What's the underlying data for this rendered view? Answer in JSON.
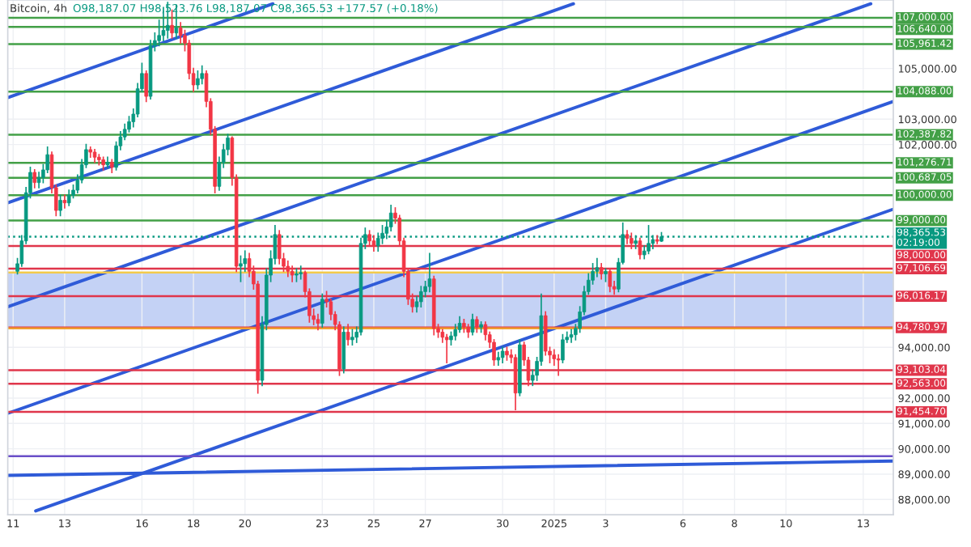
{
  "chart_data": {
    "type": "candlestick",
    "title": "Bitcoin, 4h",
    "annotations": [
      "O98,187.07 H98,523.76 L98,187.07 C98,365.53 +177.57 (+0.18%)"
    ],
    "x": [
      "2024-12-11T04:00",
      "2024-12-11T08:00",
      "2024-12-11T12:00",
      "2024-12-11T16:00",
      "2024-12-11T20:00",
      "2024-12-12T00:00",
      "2024-12-12T04:00",
      "2024-12-12T08:00",
      "2024-12-12T12:00",
      "2024-12-12T16:00",
      "2024-12-12T20:00",
      "2024-12-13T00:00",
      "2024-12-13T04:00",
      "2024-12-13T08:00",
      "2024-12-13T12:00",
      "2024-12-13T16:00",
      "2024-12-13T20:00",
      "2024-12-14T00:00",
      "2024-12-14T04:00",
      "2024-12-14T08:00",
      "2024-12-14T12:00",
      "2024-12-14T16:00",
      "2024-12-14T20:00",
      "2024-12-15T00:00",
      "2024-12-15T04:00",
      "2024-12-15T08:00",
      "2024-12-15T12:00",
      "2024-12-15T16:00",
      "2024-12-15T20:00",
      "2024-12-16T00:00",
      "2024-12-16T04:00",
      "2024-12-16T08:00",
      "2024-12-16T12:00",
      "2024-12-16T16:00",
      "2024-12-16T20:00",
      "2024-12-17T00:00",
      "2024-12-17T04:00",
      "2024-12-17T08:00",
      "2024-12-17T12:00",
      "2024-12-17T16:00",
      "2024-12-17T20:00",
      "2024-12-18T00:00",
      "2024-12-18T04:00",
      "2024-12-18T08:00",
      "2024-12-18T12:00",
      "2024-12-18T16:00",
      "2024-12-18T20:00",
      "2024-12-19T00:00",
      "2024-12-19T04:00",
      "2024-12-19T08:00",
      "2024-12-19T12:00",
      "2024-12-19T16:00",
      "2024-12-19T20:00",
      "2024-12-20T00:00",
      "2024-12-20T04:00",
      "2024-12-20T08:00",
      "2024-12-20T12:00",
      "2024-12-20T16:00",
      "2024-12-20T20:00",
      "2024-12-21T00:00",
      "2024-12-21T04:00",
      "2024-12-21T08:00",
      "2024-12-21T12:00",
      "2024-12-21T16:00",
      "2024-12-21T20:00",
      "2024-12-22T00:00",
      "2024-12-22T04:00",
      "2024-12-22T08:00",
      "2024-12-22T12:00",
      "2024-12-22T16:00",
      "2024-12-22T20:00",
      "2024-12-23T00:00",
      "2024-12-23T04:00",
      "2024-12-23T08:00",
      "2024-12-23T12:00",
      "2024-12-23T16:00",
      "2024-12-23T20:00",
      "2024-12-24T00:00",
      "2024-12-24T04:00",
      "2024-12-24T08:00",
      "2024-12-24T12:00",
      "2024-12-24T16:00",
      "2024-12-24T20:00",
      "2024-12-25T00:00",
      "2024-12-25T04:00",
      "2024-12-25T08:00",
      "2024-12-25T12:00",
      "2024-12-25T16:00",
      "2024-12-25T20:00",
      "2024-12-26T00:00",
      "2024-12-26T04:00",
      "2024-12-26T08:00",
      "2024-12-26T12:00",
      "2024-12-26T16:00",
      "2024-12-26T20:00",
      "2024-12-27T00:00",
      "2024-12-27T04:00",
      "2024-12-27T08:00",
      "2024-12-27T12:00",
      "2024-12-27T16:00",
      "2024-12-27T20:00",
      "2024-12-28T00:00",
      "2024-12-28T04:00",
      "2024-12-28T08:00",
      "2024-12-28T12:00",
      "2024-12-28T16:00",
      "2024-12-28T20:00",
      "2024-12-29T00:00",
      "2024-12-29T04:00",
      "2024-12-29T08:00",
      "2024-12-29T12:00",
      "2024-12-29T16:00",
      "2024-12-29T20:00",
      "2024-12-30T00:00",
      "2024-12-30T04:00",
      "2024-12-30T08:00",
      "2024-12-30T12:00",
      "2024-12-30T16:00",
      "2024-12-30T20:00",
      "2024-12-31T00:00",
      "2024-12-31T04:00",
      "2024-12-31T08:00",
      "2024-12-31T12:00",
      "2024-12-31T16:00",
      "2024-12-31T20:00",
      "2025-01-01T00:00",
      "2025-01-01T04:00",
      "2025-01-01T08:00",
      "2025-01-01T12:00",
      "2025-01-01T16:00",
      "2025-01-01T20:00",
      "2025-01-02T00:00",
      "2025-01-02T04:00",
      "2025-01-02T08:00",
      "2025-01-02T12:00",
      "2025-01-02T16:00",
      "2025-01-02T20:00",
      "2025-01-03T00:00",
      "2025-01-03T04:00",
      "2025-01-03T08:00",
      "2025-01-03T12:00",
      "2025-01-03T16:00",
      "2025-01-03T20:00",
      "2025-01-04T00:00",
      "2025-01-04T04:00",
      "2025-01-04T08:00",
      "2025-01-04T12:00",
      "2025-01-04T16:00",
      "2025-01-04T20:00",
      "2025-01-05T00:00",
      "2025-01-05T04:00"
    ],
    "ohlc": [
      [
        97000,
        97500,
        96900,
        97300
      ],
      [
        97300,
        98400,
        97200,
        98200
      ],
      [
        98200,
        100300,
        98100,
        100100
      ],
      [
        100100,
        101100,
        99900,
        100900
      ],
      [
        100900,
        101000,
        100300,
        100500
      ],
      [
        100500,
        100900,
        100300,
        100700
      ],
      [
        100700,
        101200,
        100500,
        101000
      ],
      [
        101000,
        101900,
        100900,
        101600
      ],
      [
        101600,
        101700,
        100100,
        100300
      ],
      [
        100300,
        100400,
        99200,
        99400
      ],
      [
        99400,
        100000,
        99200,
        99800
      ],
      [
        99800,
        100000,
        99500,
        99700
      ],
      [
        99700,
        100200,
        99600,
        100000
      ],
      [
        100000,
        100400,
        99900,
        100200
      ],
      [
        100200,
        100800,
        100100,
        100600
      ],
      [
        100600,
        101400,
        100500,
        101200
      ],
      [
        101200,
        102000,
        101100,
        101800
      ],
      [
        101800,
        101900,
        101500,
        101700
      ],
      [
        101700,
        101800,
        101300,
        101500
      ],
      [
        101500,
        101600,
        101200,
        101400
      ],
      [
        101400,
        101500,
        101000,
        101200
      ],
      [
        101200,
        101500,
        101100,
        101300
      ],
      [
        101300,
        101400,
        100900,
        101100
      ],
      [
        101100,
        102100,
        101000,
        101950
      ],
      [
        101950,
        102500,
        101800,
        102300
      ],
      [
        102300,
        102800,
        102200,
        102600
      ],
      [
        102600,
        103100,
        102500,
        102900
      ],
      [
        102900,
        103400,
        102700,
        103200
      ],
      [
        103200,
        104400,
        103100,
        104200
      ],
      [
        104200,
        105200,
        104100,
        104800
      ],
      [
        104800,
        104900,
        103700,
        103900
      ],
      [
        103900,
        106100,
        103800,
        105900
      ],
      [
        105900,
        106400,
        105700,
        106100
      ],
      [
        106100,
        106900,
        105900,
        106300
      ],
      [
        106300,
        107400,
        106100,
        106500
      ],
      [
        106500,
        107600,
        106200,
        106700
      ],
      [
        106700,
        107300,
        106200,
        106400
      ],
      [
        106400,
        107500,
        106200,
        106600
      ],
      [
        106600,
        106800,
        106000,
        106300
      ],
      [
        106300,
        106500,
        105700,
        106000
      ],
      [
        106000,
        106100,
        104600,
        104800
      ],
      [
        104800,
        105000,
        104100,
        104350
      ],
      [
        104350,
        104900,
        104200,
        104600
      ],
      [
        104600,
        105100,
        104400,
        104800
      ],
      [
        104800,
        104900,
        103500,
        103700
      ],
      [
        103700,
        103800,
        102400,
        102600
      ],
      [
        102600,
        102700,
        100100,
        100350
      ],
      [
        100350,
        101500,
        100200,
        101300
      ],
      [
        101300,
        102000,
        101100,
        101800
      ],
      [
        101800,
        102400,
        101600,
        102260
      ],
      [
        102260,
        102300,
        100400,
        100700
      ],
      [
        100700,
        100800,
        97000,
        97200
      ],
      [
        97200,
        97600,
        96600,
        97300
      ],
      [
        97300,
        97800,
        97000,
        97500
      ],
      [
        97500,
        97700,
        96800,
        97000
      ],
      [
        97000,
        97200,
        96300,
        96500
      ],
      [
        96500,
        96600,
        92200,
        92700
      ],
      [
        92700,
        95200,
        92500,
        94900
      ],
      [
        94900,
        97100,
        94700,
        96850
      ],
      [
        96850,
        97800,
        96600,
        97500
      ],
      [
        97500,
        98800,
        97300,
        98450
      ],
      [
        98450,
        98600,
        97300,
        97500
      ],
      [
        97500,
        97700,
        97000,
        97200
      ],
      [
        97200,
        97400,
        96800,
        97000
      ],
      [
        97000,
        97200,
        96600,
        96850
      ],
      [
        96850,
        97100,
        96600,
        96900
      ],
      [
        96900,
        97200,
        96700,
        96950
      ],
      [
        96950,
        97000,
        96000,
        96200
      ],
      [
        96200,
        96300,
        95000,
        95250
      ],
      [
        95250,
        95500,
        94900,
        95100
      ],
      [
        95100,
        95300,
        94700,
        94950
      ],
      [
        94950,
        96100,
        94800,
        95900
      ],
      [
        95900,
        96200,
        95600,
        95800
      ],
      [
        95800,
        95900,
        95100,
        95300
      ],
      [
        95300,
        95400,
        94700,
        94900
      ],
      [
        94900,
        95000,
        92900,
        93150
      ],
      [
        93150,
        94800,
        93000,
        94600
      ],
      [
        94600,
        94900,
        94100,
        94300
      ],
      [
        94300,
        94700,
        94100,
        94400
      ],
      [
        94400,
        94800,
        94200,
        94600
      ],
      [
        94600,
        98300,
        94500,
        98100
      ],
      [
        98100,
        98700,
        97900,
        98450
      ],
      [
        98450,
        98600,
        98000,
        98200
      ],
      [
        98200,
        98400,
        97800,
        98000
      ],
      [
        98000,
        98500,
        97800,
        98300
      ],
      [
        98300,
        98800,
        98100,
        98500
      ],
      [
        98500,
        99000,
        98300,
        98750
      ],
      [
        98750,
        99600,
        98600,
        99300
      ],
      [
        99300,
        99500,
        98900,
        99100
      ],
      [
        99100,
        99200,
        98000,
        98200
      ],
      [
        98200,
        98300,
        96800,
        97000
      ],
      [
        97000,
        97100,
        95700,
        95900
      ],
      [
        95900,
        96100,
        95400,
        95600
      ],
      [
        95600,
        96000,
        95400,
        95800
      ],
      [
        95800,
        96400,
        95600,
        96200
      ],
      [
        96200,
        96600,
        96000,
        96400
      ],
      [
        96400,
        97700,
        96200,
        96700
      ],
      [
        96700,
        96800,
        94500,
        94750
      ],
      [
        94750,
        94900,
        94400,
        94600
      ],
      [
        94600,
        94700,
        94200,
        94400
      ],
      [
        94400,
        94500,
        93400,
        94300
      ],
      [
        94300,
        94600,
        94100,
        94450
      ],
      [
        94450,
        94900,
        94300,
        94700
      ],
      [
        94700,
        95200,
        94600,
        94950
      ],
      [
        94950,
        95100,
        94600,
        94800
      ],
      [
        94800,
        94900,
        94400,
        94600
      ],
      [
        94600,
        95300,
        94500,
        95100
      ],
      [
        95100,
        95200,
        94600,
        94800
      ],
      [
        94800,
        95000,
        94600,
        94900
      ],
      [
        94900,
        95000,
        94300,
        94500
      ],
      [
        94500,
        94600,
        94000,
        94200
      ],
      [
        94200,
        94300,
        93300,
        93500
      ],
      [
        93500,
        93800,
        93300,
        93600
      ],
      [
        93600,
        94000,
        93400,
        93850
      ],
      [
        93850,
        94000,
        93500,
        93700
      ],
      [
        93700,
        93900,
        93400,
        93600
      ],
      [
        93600,
        93700,
        91550,
        92200
      ],
      [
        92200,
        94300,
        92100,
        94100
      ],
      [
        94100,
        94200,
        93300,
        93500
      ],
      [
        93500,
        93600,
        92500,
        92700
      ],
      [
        92700,
        93100,
        92500,
        92900
      ],
      [
        92900,
        93600,
        92700,
        93450
      ],
      [
        93450,
        96100,
        93300,
        95250
      ],
      [
        95250,
        95400,
        93700,
        93850
      ],
      [
        93850,
        94000,
        93400,
        93700
      ],
      [
        93700,
        93900,
        93300,
        93550
      ],
      [
        93550,
        93700,
        92900,
        93500
      ],
      [
        93500,
        94500,
        93400,
        94300
      ],
      [
        94300,
        94600,
        94200,
        94400
      ],
      [
        94400,
        94700,
        94200,
        94500
      ],
      [
        94500,
        94900,
        94300,
        94750
      ],
      [
        94750,
        95600,
        94600,
        95400
      ],
      [
        95400,
        96400,
        95300,
        96200
      ],
      [
        96200,
        96900,
        96100,
        96650
      ],
      [
        96650,
        97300,
        96500,
        97000
      ],
      [
        97000,
        97500,
        96800,
        97150
      ],
      [
        97150,
        97300,
        96700,
        96900
      ],
      [
        96900,
        97100,
        96600,
        97000
      ],
      [
        97000,
        97100,
        96200,
        96400
      ],
      [
        96400,
        96600,
        96100,
        96300
      ],
      [
        96300,
        97500,
        96200,
        97350
      ],
      [
        97350,
        98900,
        97300,
        98450
      ],
      [
        98450,
        98600,
        98100,
        98300
      ],
      [
        98300,
        98500,
        97900,
        98100
      ],
      [
        98100,
        98400,
        97900,
        98200
      ],
      [
        98200,
        98300,
        97500,
        97650
      ],
      [
        97650,
        98000,
        97500,
        97800
      ],
      [
        97800,
        98800,
        97700,
        98100
      ],
      [
        98100,
        98400,
        97900,
        98250
      ],
      [
        98250,
        98400,
        98100,
        98187.07
      ],
      [
        98187.07,
        98523.76,
        98187.07,
        98365.53
      ]
    ],
    "series": [
      {
        "type": "line",
        "color": "#2f5bd8",
        "x": [
          "2024-12-10T19:00",
          "2024-12-21T02:00"
        ],
        "values": [
          103850,
          107550
        ]
      },
      {
        "type": "line",
        "color": "#2f5bd8",
        "x": [
          "2024-12-10T19:00",
          "2025-01-01T18:00"
        ],
        "values": [
          99700,
          107550
        ]
      },
      {
        "type": "line",
        "color": "#2f5bd8",
        "x": [
          "2024-12-10T19:00",
          "2025-01-13T07:00"
        ],
        "values": [
          95600,
          107550
        ]
      },
      {
        "type": "line",
        "color": "#2f5bd8",
        "x": [
          "2024-12-10T19:00",
          "2025-01-14T04:00"
        ],
        "values": [
          91400,
          103700
        ]
      },
      {
        "type": "line",
        "color": "#2f5bd8",
        "x": [
          "2024-12-11T21:00",
          "2025-01-14T04:00"
        ],
        "values": [
          87550,
          99450
        ]
      },
      {
        "type": "line",
        "color": "#2f5bd8",
        "x": [
          "2024-12-10T19:00",
          "2025-01-14T04:00"
        ],
        "values": [
          88950,
          89520
        ]
      }
    ],
    "ref_lines": [
      {
        "axis": "y",
        "value": 107000,
        "label": "107,000.00",
        "color": "#43a047"
      },
      {
        "axis": "y",
        "value": 106640,
        "label": "106,640.00",
        "color": "#43a047"
      },
      {
        "axis": "y",
        "value": 105961.42,
        "label": "105,961.42",
        "color": "#43a047"
      },
      {
        "axis": "y",
        "value": 104088,
        "label": "104,088.00",
        "color": "#43a047"
      },
      {
        "axis": "y",
        "value": 102387.82,
        "label": "102,387.82",
        "color": "#43a047"
      },
      {
        "axis": "y",
        "value": 101276.71,
        "label": "101,276.71",
        "color": "#43a047"
      },
      {
        "axis": "y",
        "value": 100687.05,
        "label": "100,687.05",
        "color": "#43a047"
      },
      {
        "axis": "y",
        "value": 100000,
        "label": "100,000.00",
        "color": "#43a047"
      },
      {
        "axis": "y",
        "value": 99000,
        "label": "99,000.00",
        "color": "#43a047"
      },
      {
        "axis": "y",
        "value": 98365.53,
        "label": "98,365.53\n02:19:00",
        "color": "#089981",
        "line_style": "dotted"
      },
      {
        "axis": "y",
        "value": 98000,
        "label": "98,000.00",
        "color": "#e0364b"
      },
      {
        "axis": "y",
        "value": 97106.69,
        "label": "97,106.69",
        "color": "#e0364b"
      },
      {
        "axis": "y",
        "value": 96950,
        "color": "#f2c94c"
      },
      {
        "axis": "y",
        "value": 96016.17,
        "label": "96,016.17",
        "color": "#e0364b"
      },
      {
        "axis": "y",
        "value": 94780.97,
        "label": "94,780.97",
        "color": "#e0364b"
      },
      {
        "axis": "y",
        "value": 94750,
        "color": "#f0a030"
      },
      {
        "axis": "y",
        "value": 93103.04,
        "label": "93,103.04",
        "color": "#e0364b"
      },
      {
        "axis": "y",
        "value": 92563,
        "label": "92,563.00",
        "color": "#e0364b"
      },
      {
        "axis": "y",
        "value": 91454.7,
        "label": "91,454.70",
        "color": "#e0364b"
      },
      {
        "axis": "y",
        "value": 89710,
        "color": "#6a4fc8"
      }
    ],
    "bands": [
      {
        "axis": "y",
        "from": 94750,
        "to": 96950,
        "color": "#9db4ef"
      }
    ],
    "xlim": [
      "2024-12-10T19:00",
      "2025-01-14T04:00"
    ],
    "ylim": [
      87400,
      107700
    ],
    "xticks": [
      {
        "value": "2024-12-11",
        "label": "11"
      },
      {
        "value": "2024-12-13",
        "label": "13"
      },
      {
        "value": "2024-12-16",
        "label": "16"
      },
      {
        "value": "2024-12-18",
        "label": "18"
      },
      {
        "value": "2024-12-20",
        "label": "20"
      },
      {
        "value": "2024-12-23",
        "label": "23"
      },
      {
        "value": "2024-12-25",
        "label": "25"
      },
      {
        "value": "2024-12-27",
        "label": "27"
      },
      {
        "value": "2024-12-30",
        "label": "30"
      },
      {
        "value": "2025-01-01",
        "label": "2025"
      },
      {
        "value": "2025-01-03",
        "label": "3"
      },
      {
        "value": "2025-01-06",
        "label": "6"
      },
      {
        "value": "2025-01-08",
        "label": "8"
      },
      {
        "value": "2025-01-10",
        "label": "10"
      },
      {
        "value": "2025-01-13",
        "label": "13"
      }
    ],
    "yticks": [
      {
        "value": 88000,
        "label": "88,000.00"
      },
      {
        "value": 89000,
        "label": "89,000.00"
      },
      {
        "value": 90000,
        "label": "90,000.00"
      },
      {
        "value": 91000,
        "label": "91,000.00"
      },
      {
        "value": 92000,
        "label": "92,000.00"
      },
      {
        "value": 94000,
        "label": "94,000.00"
      },
      {
        "value": 102000,
        "label": "102,000.00"
      },
      {
        "value": 103000,
        "label": "103,000.00"
      },
      {
        "value": 105000,
        "label": "105,000.00"
      }
    ],
    "grid": true
  }
}
